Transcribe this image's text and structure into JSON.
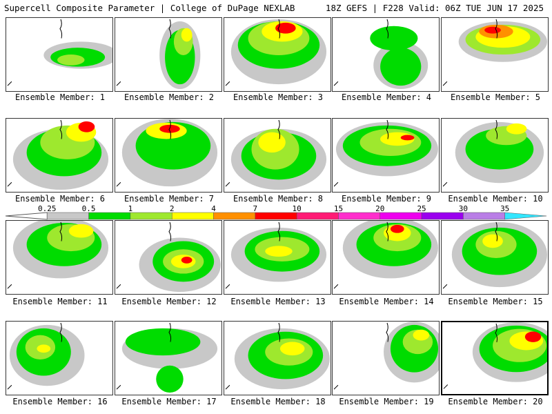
{
  "header": {
    "left": "Supercell Composite Parameter | College of DuPage NEXLAB",
    "right": "18Z GEFS | F228 Valid: 06Z TUE JUN 17 2025"
  },
  "colorbar": {
    "ticks": [
      "0.25",
      "0.5",
      "1",
      "2",
      "4",
      "7",
      "10",
      "15",
      "20",
      "25",
      "30",
      "35"
    ],
    "colors": [
      "#c8c8c8",
      "#00dc00",
      "#9ee82e",
      "#ffff00",
      "#ff9000",
      "#ff0000",
      "#ff1a75",
      "#ff2ecc",
      "#ee00ee",
      "#9a00ee",
      "#b97ee6",
      "#33e6ff"
    ]
  },
  "members": [
    {
      "label": "Ensemble Member: 1"
    },
    {
      "label": "Ensemble Member: 2"
    },
    {
      "label": "Ensemble Member: 3"
    },
    {
      "label": "Ensemble Member: 4"
    },
    {
      "label": "Ensemble Member: 5"
    },
    {
      "label": "Ensemble Member: 6"
    },
    {
      "label": "Ensemble Member: 7"
    },
    {
      "label": "Ensemble Member: 8"
    },
    {
      "label": "Ensemble Member: 9"
    },
    {
      "label": "Ensemble Member: 10"
    },
    {
      "label": "Ensemble Member: 11"
    },
    {
      "label": "Ensemble Member: 12"
    },
    {
      "label": "Ensemble Member: 13"
    },
    {
      "label": "Ensemble Member: 14"
    },
    {
      "label": "Ensemble Member: 15"
    },
    {
      "label": "Ensemble Member: 16"
    },
    {
      "label": "Ensemble Member: 17"
    },
    {
      "label": "Ensemble Member: 18"
    },
    {
      "label": "Ensemble Member: 19"
    },
    {
      "label": "Ensemble Member: 20",
      "selected": true
    }
  ]
}
